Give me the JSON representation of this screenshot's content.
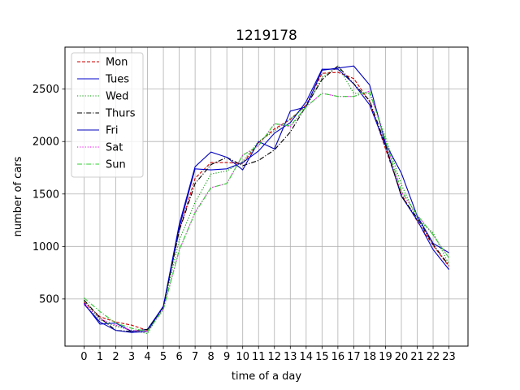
{
  "chart_data": {
    "type": "line",
    "title": "1219178",
    "xlabel": "time of a day",
    "ylabel": "number of cars",
    "x": [
      0,
      1,
      2,
      3,
      4,
      5,
      6,
      7,
      8,
      9,
      10,
      11,
      12,
      13,
      14,
      15,
      16,
      17,
      18,
      19,
      20,
      21,
      22,
      23
    ],
    "xticks": [
      "0",
      "1",
      "2",
      "3",
      "4",
      "5",
      "6",
      "7",
      "8",
      "9",
      "10",
      "11",
      "12",
      "13",
      "14",
      "15",
      "16",
      "17",
      "18",
      "19",
      "20",
      "21",
      "22",
      "23"
    ],
    "yticks": [
      500,
      1000,
      1500,
      2000,
      2500
    ],
    "xlim": [
      -1.2,
      24.2
    ],
    "ylim": [
      50,
      2900
    ],
    "grid": true,
    "legend_position": "upper-left",
    "series": [
      {
        "name": "Mon",
        "color": "#cc0000",
        "dash": "dashed",
        "values": [
          470,
          330,
          280,
          250,
          200,
          430,
          1150,
          1650,
          1800,
          1800,
          1790,
          1990,
          2120,
          2210,
          2350,
          2650,
          2660,
          2600,
          2380,
          1930,
          1500,
          1240,
          1010,
          810
        ]
      },
      {
        "name": "Tues",
        "color": "#0000cc",
        "dash": "solid",
        "values": [
          460,
          260,
          270,
          190,
          210,
          430,
          1180,
          1740,
          1730,
          1740,
          1800,
          1910,
          2080,
          2180,
          2380,
          2690,
          2690,
          2550,
          2350,
          1960,
          1480,
          1250,
          970,
          780
        ]
      },
      {
        "name": "Wed",
        "color": "#009900",
        "dash": "dotted",
        "values": [
          480,
          300,
          240,
          200,
          170,
          420,
          1060,
          1420,
          1690,
          1720,
          1810,
          2000,
          2100,
          2220,
          2330,
          2610,
          2720,
          2460,
          2460,
          2040,
          1590,
          1260,
          1130,
          830
        ]
      },
      {
        "name": "Thurs",
        "color": "#000000",
        "dash": "dashdot",
        "values": [
          490,
          320,
          200,
          190,
          210,
          420,
          1150,
          1600,
          1780,
          1850,
          1770,
          1820,
          1920,
          2090,
          2340,
          2590,
          2720,
          2550,
          2390,
          1970,
          1480,
          1270,
          1020,
          820
        ]
      },
      {
        "name": "Fri",
        "color": "#0000bb",
        "dash": "solid",
        "values": [
          450,
          280,
          200,
          180,
          190,
          430,
          1210,
          1760,
          1900,
          1850,
          1730,
          2000,
          1930,
          2290,
          2330,
          2680,
          2700,
          2720,
          2540,
          1980,
          1700,
          1290,
          1030,
          940
        ]
      },
      {
        "name": "Sat",
        "color": "#ee00ee",
        "dash": "dotted",
        "values": [
          450,
          310,
          250,
          200,
          190,
          400,
          960,
          1330,
          1560,
          1600,
          1870,
          1960,
          2170,
          2140,
          2330,
          2460,
          2430,
          2430,
          2480,
          2010,
          1520,
          1300,
          1110,
          890
        ]
      },
      {
        "name": "Sun",
        "color": "#33cc33",
        "dash": "dashdot",
        "values": [
          510,
          380,
          270,
          220,
          190,
          400,
          970,
          1320,
          1560,
          1600,
          1870,
          1960,
          2170,
          2150,
          2330,
          2460,
          2430,
          2430,
          2480,
          2010,
          1530,
          1300,
          1110,
          890
        ]
      }
    ]
  }
}
